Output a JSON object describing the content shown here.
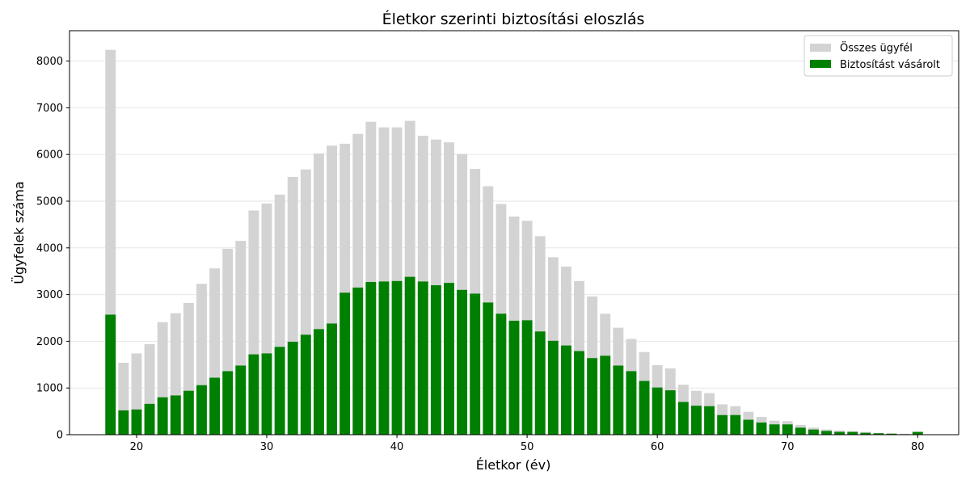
{
  "chart_data": {
    "type": "bar",
    "title": "Életkor szerinti biztosítási eloszlás",
    "xlabel": "Életkor (év)",
    "ylabel": "Ügyfelek száma",
    "xlim": [
      14.85,
      83.15
    ],
    "ylim": [
      0,
      8650
    ],
    "xticks": [
      20,
      30,
      40,
      50,
      60,
      70,
      80
    ],
    "yticks": [
      0,
      1000,
      2000,
      3000,
      4000,
      5000,
      6000,
      7000,
      8000
    ],
    "grid": "y",
    "legend_position": "top-right",
    "overlay": true,
    "x": [
      18,
      19,
      20,
      21,
      22,
      23,
      24,
      25,
      26,
      27,
      28,
      29,
      30,
      31,
      32,
      33,
      34,
      35,
      36,
      37,
      38,
      39,
      40,
      41,
      42,
      43,
      44,
      45,
      46,
      47,
      48,
      49,
      50,
      51,
      52,
      53,
      54,
      55,
      56,
      57,
      58,
      59,
      60,
      61,
      62,
      63,
      64,
      65,
      66,
      67,
      68,
      69,
      70,
      71,
      72,
      73,
      74,
      75,
      76,
      77,
      78,
      79,
      80
    ],
    "series": [
      {
        "name": "Összes ügyfél",
        "color": "#d3d3d3",
        "values": [
          8240,
          1540,
          1740,
          1940,
          2410,
          2600,
          2820,
          3230,
          3560,
          3980,
          4150,
          4800,
          4950,
          5140,
          5520,
          5680,
          6020,
          6190,
          6230,
          6440,
          6700,
          6580,
          6580,
          6720,
          6400,
          6320,
          6260,
          6010,
          5690,
          5320,
          4940,
          4670,
          4580,
          4250,
          3800,
          3600,
          3290,
          2960,
          2590,
          2290,
          2050,
          1770,
          1490,
          1420,
          1070,
          940,
          890,
          650,
          610,
          490,
          380,
          300,
          290,
          210,
          150,
          110,
          90,
          70,
          60,
          40,
          30,
          20,
          60
        ]
      },
      {
        "name": "Biztosítást vásárolt",
        "color": "#008000",
        "values": [
          2570,
          520,
          540,
          660,
          800,
          840,
          940,
          1060,
          1220,
          1360,
          1480,
          1720,
          1740,
          1880,
          1990,
          2140,
          2260,
          2380,
          3040,
          3150,
          3270,
          3280,
          3290,
          3380,
          3280,
          3200,
          3250,
          3100,
          3020,
          2830,
          2590,
          2440,
          2450,
          2210,
          2010,
          1910,
          1790,
          1640,
          1690,
          1480,
          1360,
          1150,
          1010,
          950,
          700,
          620,
          610,
          420,
          420,
          320,
          260,
          220,
          220,
          150,
          110,
          80,
          60,
          60,
          40,
          30,
          20,
          10,
          60
        ]
      }
    ]
  }
}
